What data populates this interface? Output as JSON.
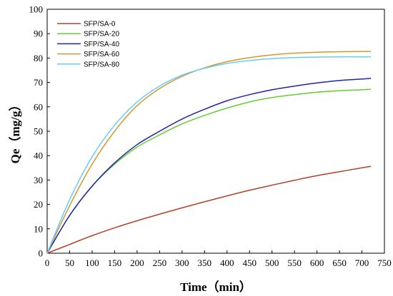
{
  "chart_data": {
    "type": "line",
    "title": "",
    "xlabel": "Time（min）",
    "ylabel": "Qe（mg/g）",
    "xlim": [
      0,
      750
    ],
    "ylim": [
      0,
      100
    ],
    "x_ticks": [
      0,
      50,
      100,
      150,
      200,
      250,
      300,
      350,
      400,
      450,
      500,
      550,
      600,
      650,
      700,
      750
    ],
    "y_ticks": [
      0,
      10,
      20,
      30,
      40,
      50,
      60,
      70,
      80,
      90,
      100
    ],
    "grid": false,
    "legend_position": "top-left",
    "series": [
      {
        "name": "SFP/SA-0",
        "color": "#b5402a",
        "x": [
          0,
          50,
          100,
          150,
          200,
          250,
          300,
          350,
          400,
          450,
          500,
          550,
          600,
          650,
          700,
          720
        ],
        "y": [
          0,
          3.6,
          7.2,
          10.4,
          13.3,
          16.0,
          18.6,
          21.1,
          23.5,
          25.8,
          27.9,
          29.9,
          31.8,
          33.4,
          35.0,
          35.6
        ]
      },
      {
        "name": "SFP/SA-20",
        "color": "#66cc33",
        "x": [
          0,
          50,
          100,
          150,
          200,
          250,
          300,
          350,
          400,
          450,
          500,
          550,
          600,
          650,
          700,
          720
        ],
        "y": [
          0,
          15.5,
          27.5,
          36.5,
          43.5,
          48.5,
          53.0,
          56.5,
          59.5,
          62.0,
          63.8,
          65.0,
          66.0,
          66.6,
          67.0,
          67.2
        ]
      },
      {
        "name": "SFP/SA-40",
        "color": "#2222aa",
        "x": [
          0,
          50,
          100,
          150,
          200,
          250,
          300,
          350,
          400,
          450,
          500,
          550,
          600,
          650,
          700,
          720
        ],
        "y": [
          0,
          15.5,
          27.5,
          37.0,
          44.5,
          50.0,
          55.0,
          59.0,
          62.5,
          65.0,
          67.0,
          68.5,
          69.8,
          70.8,
          71.4,
          71.7
        ]
      },
      {
        "name": "SFP/SA-60",
        "color": "#d4982a",
        "x": [
          0,
          50,
          100,
          150,
          200,
          250,
          300,
          350,
          400,
          450,
          500,
          550,
          600,
          650,
          700,
          720
        ],
        "y": [
          0,
          19.5,
          36.5,
          50.0,
          60.5,
          67.5,
          72.5,
          76.0,
          78.5,
          80.2,
          81.3,
          82.0,
          82.4,
          82.6,
          82.7,
          82.7
        ]
      },
      {
        "name": "SFP/SA-80",
        "color": "#66ccff",
        "x": [
          0,
          50,
          100,
          150,
          200,
          250,
          300,
          350,
          400,
          450,
          500,
          550,
          600,
          650,
          700,
          720
        ],
        "y": [
          0,
          22.0,
          39.5,
          52.5,
          62.0,
          68.5,
          73.0,
          75.8,
          77.8,
          79.0,
          79.8,
          80.2,
          80.4,
          80.5,
          80.5,
          80.5
        ]
      }
    ]
  }
}
